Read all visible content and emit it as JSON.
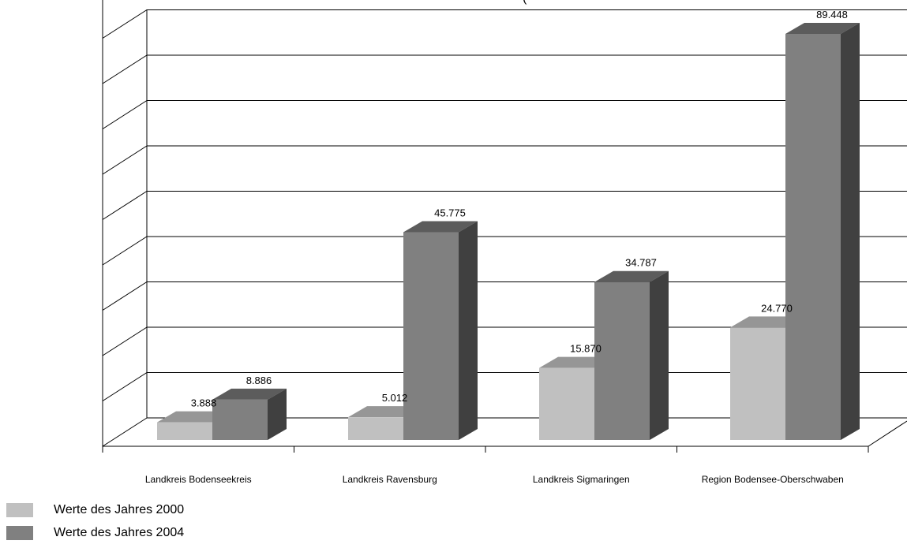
{
  "chart_data": {
    "type": "bar",
    "title": "",
    "title_partial": "(",
    "categories": [
      "Landkreis Bodenseekreis",
      "Landkreis Ravensburg",
      "Landkreis Sigmaringen",
      "Region Bodensee-Oberschwaben"
    ],
    "series": [
      {
        "name": "Werte des Jahres 2000",
        "values": [
          3888,
          5012,
          15870,
          24770
        ],
        "labels": [
          "3.888",
          "5.012",
          "15.870",
          "24.770"
        ],
        "color": "#c0c0c0"
      },
      {
        "name": "Werte des Jahres 2004",
        "values": [
          8886,
          45775,
          34787,
          89448
        ],
        "labels": [
          "8.886",
          "45.775",
          "34.787",
          "89.448"
        ],
        "color": "#808080"
      }
    ],
    "ylim": [
      0,
      90000
    ],
    "grid": true,
    "three_d": true,
    "legend_position": "bottom-left"
  }
}
